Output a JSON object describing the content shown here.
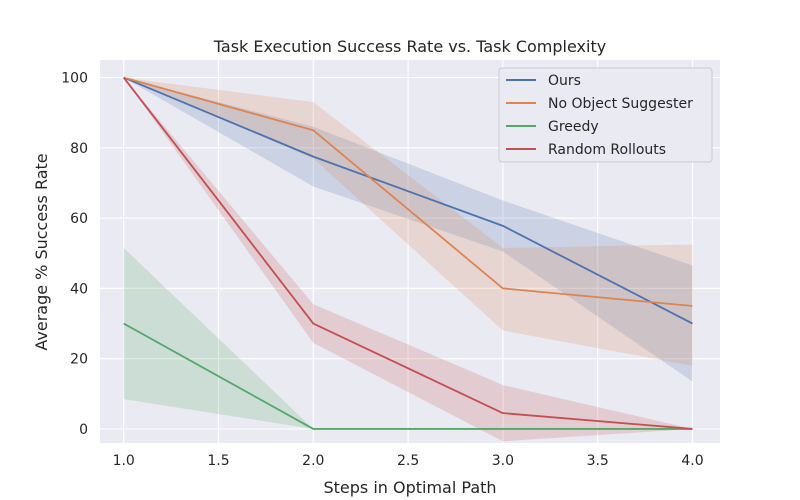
{
  "chart_data": {
    "type": "line",
    "title": "Task Execution Success Rate vs. Task Complexity",
    "xlabel": "Steps in Optimal Path",
    "ylabel": "Average % Success Rate",
    "xlim": [
      0.875,
      4.145
    ],
    "ylim": [
      -4,
      105
    ],
    "x": [
      1.0,
      2.0,
      3.0,
      4.0
    ],
    "xticks": [
      "1.0",
      "1.5",
      "2.0",
      "2.5",
      "3.0",
      "3.5",
      "4.0"
    ],
    "xtick_values": [
      1.0,
      1.5,
      2.0,
      2.5,
      3.0,
      3.5,
      4.0
    ],
    "yticks": [
      "0",
      "20",
      "40",
      "60",
      "80",
      "100"
    ],
    "ytick_values": [
      0,
      20,
      40,
      60,
      80,
      100
    ],
    "grid": true,
    "legend_position": "top-right",
    "series": [
      {
        "name": "Ours",
        "color": "#4c72b0",
        "values": [
          100,
          77.5,
          57.8,
          30
        ],
        "lower": [
          100,
          69,
          50.5,
          13.5
        ],
        "upper": [
          100,
          86,
          65,
          46.5
        ]
      },
      {
        "name": "No Object Suggester",
        "color": "#dd8452",
        "values": [
          100,
          85,
          40,
          35
        ],
        "lower": [
          100,
          77,
          28,
          18
        ],
        "upper": [
          100,
          93,
          51.5,
          52.5
        ]
      },
      {
        "name": "Greedy",
        "color": "#55a868",
        "values": [
          30,
          0,
          0,
          0
        ],
        "lower": [
          8.5,
          0,
          0,
          0
        ],
        "upper": [
          51.5,
          0,
          0,
          0
        ]
      },
      {
        "name": "Random Rollouts",
        "color": "#c44e52",
        "values": [
          100,
          30,
          4.5,
          0
        ],
        "lower": [
          100,
          24.5,
          -3.5,
          0
        ],
        "upper": [
          100,
          35.5,
          12.5,
          0
        ]
      }
    ]
  }
}
